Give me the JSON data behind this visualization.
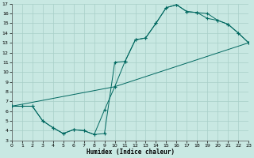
{
  "xlabel": "Humidex (Indice chaleur)",
  "xlim": [
    0,
    23
  ],
  "ylim": [
    3,
    17
  ],
  "xticks": [
    0,
    1,
    2,
    3,
    4,
    5,
    6,
    7,
    8,
    9,
    10,
    11,
    12,
    13,
    14,
    15,
    16,
    17,
    18,
    19,
    20,
    21,
    22,
    23
  ],
  "yticks": [
    3,
    4,
    5,
    6,
    7,
    8,
    9,
    10,
    11,
    12,
    13,
    14,
    15,
    16,
    17
  ],
  "bg_color": "#c8e8e2",
  "grid_color": "#a8cfc8",
  "line_color": "#006860",
  "line1_x": [
    0,
    1,
    2,
    3,
    4,
    5,
    6,
    7,
    8,
    9,
    10,
    11,
    12,
    13,
    14,
    15,
    16,
    17,
    18,
    19,
    20,
    21,
    22,
    23
  ],
  "line1_y": [
    6.5,
    6.5,
    6.5,
    5.0,
    4.3,
    3.7,
    4.1,
    4.0,
    3.6,
    3.7,
    11.0,
    11.1,
    13.3,
    13.5,
    15.0,
    16.6,
    16.9,
    16.2,
    16.1,
    16.0,
    15.3,
    14.9,
    14.0,
    13.0
  ],
  "line2_x": [
    0,
    1,
    2,
    3,
    4,
    5,
    6,
    7,
    8,
    9,
    10,
    11,
    12,
    13,
    14,
    15,
    16,
    17,
    18,
    19,
    20,
    21,
    22,
    23
  ],
  "line2_y": [
    6.5,
    6.5,
    6.5,
    5.0,
    4.3,
    3.7,
    4.1,
    4.0,
    3.6,
    6.1,
    8.5,
    11.1,
    13.3,
    13.5,
    15.0,
    16.6,
    16.9,
    16.2,
    16.1,
    15.5,
    15.3,
    14.9,
    14.0,
    13.0
  ],
  "line3_x": [
    0,
    10,
    23
  ],
  "line3_y": [
    6.5,
    8.5,
    13.0
  ],
  "figsize": [
    3.2,
    2.0
  ],
  "dpi": 100
}
